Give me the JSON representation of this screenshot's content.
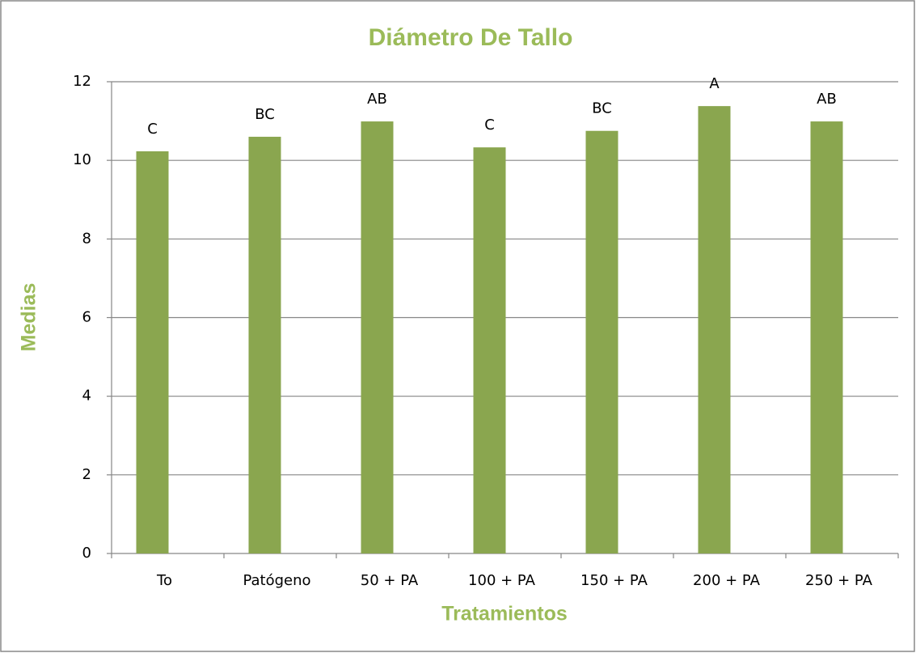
{
  "chart_data": {
    "type": "bar",
    "title": "Diámetro De Tallo",
    "x_label": "Tratamientos",
    "y_label": "Medias",
    "categories": [
      "To",
      "Patógeno",
      "50 + PA",
      "100 + PA",
      "150 + PA",
      "200 + PA",
      "250 + PA"
    ],
    "values": [
      10.23,
      10.6,
      10.99,
      10.33,
      10.75,
      11.38,
      10.99
    ],
    "group_labels": [
      "C",
      "BC",
      "AB",
      "C",
      "BC",
      "A",
      "AB"
    ],
    "color": "#8aa64f",
    "ylim": [
      0,
      12
    ],
    "yticks": [
      0,
      2,
      4,
      6,
      8,
      10,
      12
    ],
    "grid": true
  }
}
